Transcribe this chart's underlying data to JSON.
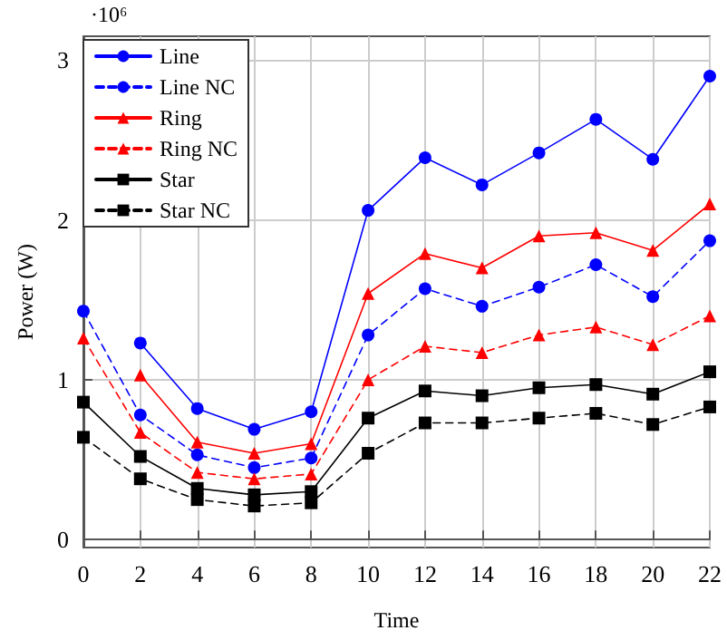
{
  "chart_data": {
    "type": "line",
    "xlabel": "Time",
    "ylabel": "Power (W)",
    "annotations": [
      "·10⁶"
    ],
    "x": [
      0,
      2,
      4,
      6,
      8,
      10,
      12,
      14,
      16,
      18,
      20,
      22
    ],
    "xlim": [
      0,
      22
    ],
    "xticks": [
      0,
      2,
      4,
      6,
      8,
      10,
      12,
      14,
      16,
      18,
      20,
      22
    ],
    "ylim": [
      -0.05,
      3.15
    ],
    "yticks": [
      0,
      1,
      2,
      3
    ],
    "grid": true,
    "legend": "top left",
    "series": [
      {
        "name": "Line",
        "color": "#0000ff",
        "marker": "circle",
        "line_style": "solid",
        "values": [
          null,
          1.23,
          0.82,
          0.69,
          0.8,
          2.06,
          2.39,
          2.22,
          2.42,
          2.63,
          2.38,
          2.9
        ]
      },
      {
        "name": "Line NC",
        "color": "#0000ff",
        "marker": "circle",
        "line_style": "dashed",
        "values": [
          1.43,
          0.78,
          0.53,
          0.45,
          0.51,
          1.28,
          1.57,
          1.46,
          1.58,
          1.72,
          1.52,
          1.87
        ]
      },
      {
        "name": "Ring",
        "color": "#ff0000",
        "marker": "triangle",
        "line_style": "solid",
        "values": [
          null,
          1.03,
          0.61,
          0.54,
          0.6,
          1.54,
          1.79,
          1.7,
          1.9,
          1.92,
          1.81,
          2.1
        ]
      },
      {
        "name": "Ring NC",
        "color": "#ff0000",
        "marker": "triangle",
        "line_style": "dashed",
        "values": [
          1.26,
          0.67,
          0.42,
          0.38,
          0.41,
          1.0,
          1.21,
          1.17,
          1.28,
          1.33,
          1.22,
          1.4
        ]
      },
      {
        "name": "Star",
        "color": "#000000",
        "marker": "square",
        "line_style": "solid",
        "values": [
          0.86,
          0.52,
          0.32,
          0.28,
          0.3,
          0.76,
          0.93,
          0.9,
          0.95,
          0.97,
          0.91,
          1.05
        ]
      },
      {
        "name": "Star NC",
        "color": "#000000",
        "marker": "square",
        "line_style": "dashed",
        "values": [
          0.64,
          0.38,
          0.25,
          0.21,
          0.23,
          0.54,
          0.73,
          0.73,
          0.76,
          0.79,
          0.72,
          0.83
        ]
      }
    ]
  }
}
